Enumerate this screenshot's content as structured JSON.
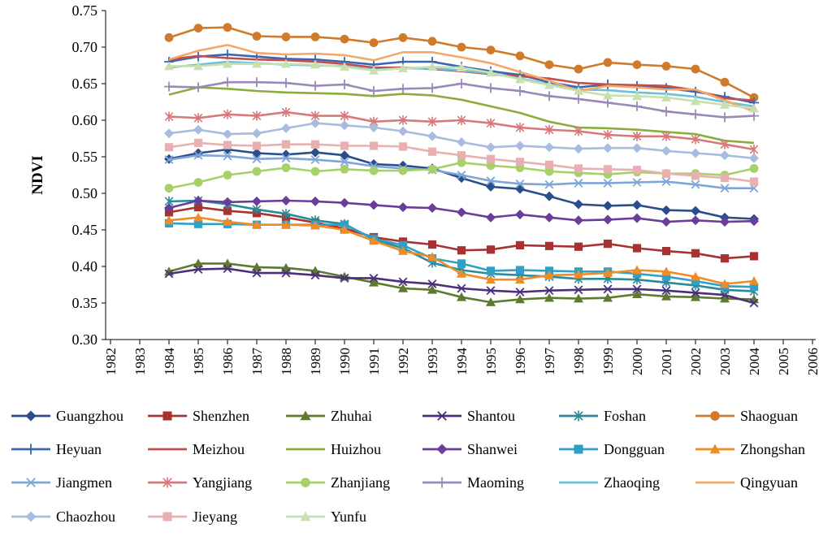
{
  "chart_data": {
    "type": "line",
    "title": "",
    "xlabel": "",
    "ylabel": "NDVI",
    "ylim": [
      0.3,
      0.75
    ],
    "yticks": [
      "0.30",
      "0.35",
      "0.40",
      "0.45",
      "0.50",
      "0.55",
      "0.60",
      "0.65",
      "0.70",
      "0.75"
    ],
    "categories": [
      "1982",
      "1983",
      "1984",
      "1985",
      "1986",
      "1987",
      "1988",
      "1989",
      "1990",
      "1991",
      "1992",
      "1993",
      "1994",
      "1995",
      "1996",
      "1997",
      "1998",
      "1999",
      "2000",
      "2001",
      "2002",
      "2003",
      "2004",
      "2005",
      "2006"
    ],
    "x": [
      1984,
      1985,
      1986,
      1987,
      1988,
      1989,
      1990,
      1991,
      1992,
      1993,
      1994,
      1995,
      1996,
      1997,
      1998,
      1999,
      2000,
      2001,
      2002,
      2003,
      2004
    ],
    "grid": false,
    "legend_position": "bottom",
    "series": [
      {
        "name": "Guangzhou",
        "color": "#2a4d8c",
        "marker": "diamond",
        "values": [
          0.547,
          0.555,
          0.56,
          0.555,
          0.553,
          0.556,
          0.552,
          0.54,
          0.538,
          0.534,
          0.521,
          0.509,
          0.506,
          0.496,
          0.485,
          0.483,
          0.484,
          0.477,
          0.476,
          0.467,
          0.465
        ]
      },
      {
        "name": "Shenzhen",
        "color": "#a83232",
        "marker": "square",
        "values": [
          0.474,
          0.481,
          0.476,
          0.473,
          0.467,
          0.46,
          0.452,
          0.44,
          0.434,
          0.43,
          0.422,
          0.423,
          0.429,
          0.428,
          0.427,
          0.431,
          0.425,
          0.421,
          0.418,
          0.411,
          0.414
        ]
      },
      {
        "name": "Zhuhai",
        "color": "#5e7a2e",
        "marker": "triangle",
        "values": [
          0.393,
          0.404,
          0.404,
          0.399,
          0.398,
          0.394,
          0.386,
          0.378,
          0.37,
          0.368,
          0.358,
          0.351,
          0.355,
          0.357,
          0.356,
          0.357,
          0.362,
          0.359,
          0.358,
          0.356,
          0.355
        ]
      },
      {
        "name": "Shantou",
        "color": "#4b2f7a",
        "marker": "x",
        "values": [
          0.39,
          0.396,
          0.397,
          0.391,
          0.391,
          0.388,
          0.384,
          0.384,
          0.379,
          0.376,
          0.37,
          0.367,
          0.365,
          0.367,
          0.368,
          0.369,
          0.369,
          0.367,
          0.364,
          0.361,
          0.35
        ]
      },
      {
        "name": "Foshan",
        "color": "#2b8a9a",
        "marker": "asterisk",
        "values": [
          0.489,
          0.49,
          0.485,
          0.478,
          0.472,
          0.463,
          0.458,
          0.437,
          0.425,
          0.405,
          0.395,
          0.39,
          0.388,
          0.386,
          0.383,
          0.383,
          0.382,
          0.378,
          0.374,
          0.368,
          0.366
        ]
      },
      {
        "name": "Shaoguan",
        "color": "#d07a2c",
        "marker": "circle",
        "values": [
          0.713,
          0.726,
          0.727,
          0.715,
          0.714,
          0.714,
          0.711,
          0.706,
          0.713,
          0.708,
          0.7,
          0.696,
          0.688,
          0.676,
          0.67,
          0.679,
          0.676,
          0.674,
          0.67,
          0.652,
          0.631
        ]
      },
      {
        "name": "Heyuan",
        "color": "#3a64b0",
        "marker": "plus",
        "values": [
          0.68,
          0.687,
          0.69,
          0.687,
          0.684,
          0.683,
          0.68,
          0.676,
          0.68,
          0.68,
          0.673,
          0.667,
          0.662,
          0.652,
          0.645,
          0.649,
          0.647,
          0.644,
          0.639,
          0.632,
          0.624
        ]
      },
      {
        "name": "Meizhou",
        "color": "#c0504d",
        "marker": "none",
        "values": [
          0.683,
          0.688,
          0.685,
          0.683,
          0.682,
          0.68,
          0.677,
          0.672,
          0.672,
          0.67,
          0.667,
          0.663,
          0.66,
          0.657,
          0.651,
          0.649,
          0.648,
          0.647,
          0.641,
          0.63,
          0.627
        ]
      },
      {
        "name": "Huizhou",
        "color": "#8cac3c",
        "marker": "none",
        "values": [
          0.635,
          0.645,
          0.643,
          0.64,
          0.638,
          0.637,
          0.636,
          0.633,
          0.636,
          0.634,
          0.628,
          0.619,
          0.61,
          0.598,
          0.59,
          0.589,
          0.587,
          0.584,
          0.581,
          0.572,
          0.569
        ]
      },
      {
        "name": "Shanwei",
        "color": "#6a3d9a",
        "marker": "diamond",
        "values": [
          0.48,
          0.49,
          0.488,
          0.489,
          0.49,
          0.489,
          0.487,
          0.484,
          0.481,
          0.48,
          0.474,
          0.467,
          0.471,
          0.467,
          0.463,
          0.464,
          0.466,
          0.461,
          0.463,
          0.461,
          0.462
        ]
      },
      {
        "name": "Dongguan",
        "color": "#2fa0c8",
        "marker": "square",
        "values": [
          0.459,
          0.458,
          0.458,
          0.457,
          0.457,
          0.457,
          0.457,
          0.438,
          0.429,
          0.411,
          0.404,
          0.394,
          0.395,
          0.394,
          0.393,
          0.393,
          0.39,
          0.386,
          0.38,
          0.373,
          0.372
        ]
      },
      {
        "name": "Zhongshan",
        "color": "#f08c28",
        "marker": "triangle",
        "values": [
          0.463,
          0.467,
          0.461,
          0.457,
          0.457,
          0.456,
          0.45,
          0.435,
          0.421,
          0.413,
          0.39,
          0.382,
          0.382,
          0.388,
          0.389,
          0.391,
          0.395,
          0.393,
          0.386,
          0.376,
          0.38
        ]
      },
      {
        "name": "Jiangmen",
        "color": "#7ea6d8",
        "marker": "x",
        "values": [
          0.546,
          0.552,
          0.551,
          0.547,
          0.548,
          0.546,
          0.543,
          0.537,
          0.534,
          0.532,
          0.525,
          0.517,
          0.513,
          0.512,
          0.514,
          0.514,
          0.515,
          0.516,
          0.512,
          0.507,
          0.507
        ]
      },
      {
        "name": "Yangjiang",
        "color": "#d9787a",
        "marker": "asterisk",
        "values": [
          0.605,
          0.603,
          0.608,
          0.606,
          0.611,
          0.606,
          0.606,
          0.598,
          0.6,
          0.598,
          0.6,
          0.596,
          0.59,
          0.587,
          0.585,
          0.58,
          0.578,
          0.578,
          0.574,
          0.567,
          0.56
        ]
      },
      {
        "name": "Zhanjiang",
        "color": "#a8d068",
        "marker": "circle",
        "values": [
          0.507,
          0.515,
          0.525,
          0.53,
          0.535,
          0.53,
          0.533,
          0.531,
          0.531,
          0.533,
          0.542,
          0.538,
          0.535,
          0.53,
          0.528,
          0.526,
          0.529,
          0.527,
          0.527,
          0.525,
          0.534
        ]
      },
      {
        "name": "Maoming",
        "color": "#9a88b8",
        "marker": "plus",
        "values": [
          0.646,
          0.645,
          0.652,
          0.652,
          0.651,
          0.647,
          0.649,
          0.64,
          0.643,
          0.644,
          0.65,
          0.644,
          0.64,
          0.633,
          0.629,
          0.624,
          0.619,
          0.612,
          0.608,
          0.604,
          0.606
        ]
      },
      {
        "name": "Zhaoqing",
        "color": "#6cc0d8",
        "marker": "none",
        "values": [
          0.672,
          0.676,
          0.68,
          0.678,
          0.676,
          0.675,
          0.674,
          0.669,
          0.671,
          0.671,
          0.668,
          0.664,
          0.657,
          0.649,
          0.642,
          0.641,
          0.638,
          0.636,
          0.632,
          0.625,
          0.619
        ]
      },
      {
        "name": "Qingyuan",
        "color": "#f4a868",
        "marker": "none",
        "values": [
          0.683,
          0.695,
          0.703,
          0.692,
          0.69,
          0.691,
          0.689,
          0.682,
          0.693,
          0.693,
          0.686,
          0.678,
          0.666,
          0.654,
          0.64,
          0.647,
          0.645,
          0.642,
          0.642,
          0.627,
          0.612
        ]
      },
      {
        "name": "Chaozhou",
        "color": "#a8bce0",
        "marker": "diamond",
        "values": [
          0.582,
          0.587,
          0.581,
          0.582,
          0.589,
          0.596,
          0.593,
          0.59,
          0.585,
          0.578,
          0.57,
          0.563,
          0.565,
          0.563,
          0.561,
          0.562,
          0.562,
          0.558,
          0.555,
          0.552,
          0.548
        ]
      },
      {
        "name": "Jieyang",
        "color": "#e8b0b0",
        "marker": "square",
        "values": [
          0.563,
          0.569,
          0.566,
          0.565,
          0.567,
          0.567,
          0.565,
          0.565,
          0.564,
          0.557,
          0.552,
          0.547,
          0.543,
          0.539,
          0.534,
          0.533,
          0.532,
          0.527,
          0.524,
          0.521,
          0.516
        ]
      },
      {
        "name": "Yunfu",
        "color": "#c8e0b0",
        "marker": "triangle",
        "values": [
          0.674,
          0.674,
          0.677,
          0.677,
          0.677,
          0.676,
          0.673,
          0.668,
          0.671,
          0.673,
          0.672,
          0.665,
          0.656,
          0.648,
          0.64,
          0.634,
          0.633,
          0.631,
          0.626,
          0.621,
          0.616
        ]
      }
    ]
  }
}
